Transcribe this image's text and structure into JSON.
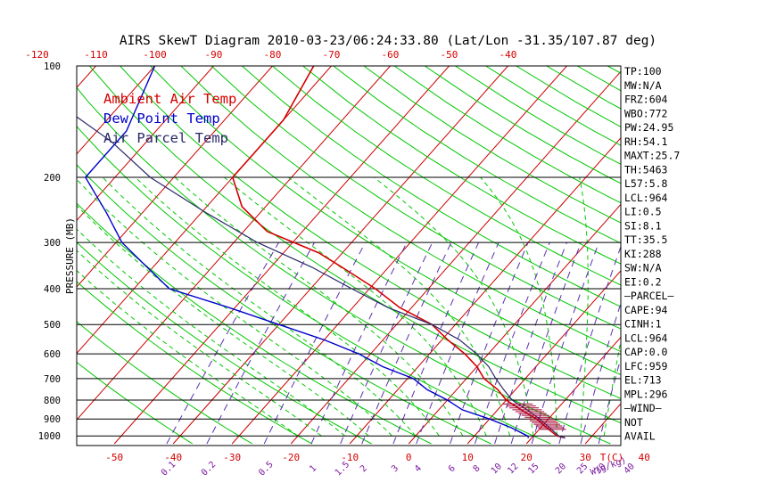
{
  "title": "AIRS SkewT Diagram 2010-03-23/06:24:33.80 (Lat/Lon -31.35/107.87 deg)",
  "legend": {
    "ambient": "Ambient Air Temp",
    "dewpoint": "Dew Point Temp",
    "parcel": "Air Parcel Temp"
  },
  "colors": {
    "ambient": "#d40000",
    "dewpoint": "#0000cc",
    "parcel": "#2a2a6a",
    "dry_adiabat": "#00c800",
    "moist_adiabat": "#00c800",
    "mixing_ratio": "#5a2fb0",
    "isotherm": "#cc0000",
    "isobar": "#000000",
    "text": "#000000",
    "mixing_label": "#7a1aa0",
    "wind_barb": "#a00030"
  },
  "stats": [
    "TP:100",
    "MW:N/A",
    "FRZ:604",
    "WBO:772",
    "PW:24.95",
    "RH:54.1",
    "MAXT:25.7",
    "TH:5463",
    "L57:5.8",
    "LCL:964",
    "LI:0.5",
    "SI:8.1",
    "TT:35.5",
    "KI:288",
    "SW:N/A",
    "EI:0.2",
    "—PARCEL—",
    "CAPE:94",
    "CINH:1",
    "LCL:964",
    "CAP:0.0",
    "LFC:959",
    "EL:713",
    "MPL:296",
    "—WIND—",
    "NOT",
    "AVAIL"
  ],
  "chart_data": {
    "type": "skewt",
    "ylabel": "PRESSURE (MB)",
    "xlabel": "T(C)",
    "mixing_unit": "W(g/kg)",
    "pressure_ticks": [
      100,
      200,
      300,
      400,
      500,
      600,
      700,
      800,
      900,
      1000
    ],
    "top_temp_ticks": [
      -120,
      -110,
      -100,
      -90,
      -80,
      -70,
      -60,
      -50,
      -40
    ],
    "bottom_temp_ticks": [
      -50,
      -40,
      -30,
      -20,
      -10,
      0,
      10,
      20,
      30,
      40
    ],
    "mixing_ratio_labels": [
      "0.1",
      "0.2",
      "0.5",
      "1",
      "1.5",
      "2",
      "3",
      "4",
      "6",
      "8",
      "10",
      "12",
      "15",
      "20",
      "25",
      "30",
      "40"
    ],
    "series": [
      {
        "name": "Ambient Air Temp",
        "points": [
          [
            100,
            -73
          ],
          [
            140,
            -70
          ],
          [
            180,
            -70
          ],
          [
            200,
            -70
          ],
          [
            240,
            -64
          ],
          [
            280,
            -56
          ],
          [
            320,
            -44
          ],
          [
            360,
            -36
          ],
          [
            400,
            -29
          ],
          [
            450,
            -22
          ],
          [
            500,
            -14
          ],
          [
            550,
            -9
          ],
          [
            600,
            -4
          ],
          [
            650,
            0
          ],
          [
            700,
            3
          ],
          [
            750,
            7
          ],
          [
            800,
            10
          ],
          [
            850,
            14
          ],
          [
            900,
            18
          ],
          [
            950,
            21
          ],
          [
            1000,
            24
          ],
          [
            1013,
            25.7
          ]
        ]
      },
      {
        "name": "Dew Point Temp",
        "points": [
          [
            100,
            -100
          ],
          [
            150,
            -95
          ],
          [
            200,
            -95
          ],
          [
            250,
            -86
          ],
          [
            300,
            -79
          ],
          [
            350,
            -71
          ],
          [
            400,
            -64
          ],
          [
            450,
            -51
          ],
          [
            500,
            -40
          ],
          [
            550,
            -30
          ],
          [
            600,
            -22
          ],
          [
            650,
            -16
          ],
          [
            700,
            -9
          ],
          [
            750,
            -5
          ],
          [
            800,
            0
          ],
          [
            850,
            4
          ],
          [
            900,
            10
          ],
          [
            950,
            15
          ],
          [
            1000,
            19
          ],
          [
            1013,
            19.5
          ]
        ]
      },
      {
        "name": "Air Parcel Temp",
        "points": [
          [
            100,
            -123
          ],
          [
            130,
            -109
          ],
          [
            160,
            -96
          ],
          [
            200,
            -84
          ],
          [
            250,
            -69
          ],
          [
            300,
            -56
          ],
          [
            350,
            -43
          ],
          [
            400,
            -33
          ],
          [
            450,
            -24
          ],
          [
            500,
            -14
          ],
          [
            550,
            -7
          ],
          [
            600,
            -2
          ],
          [
            650,
            2
          ],
          [
            700,
            5
          ],
          [
            750,
            8
          ],
          [
            800,
            11
          ],
          [
            850,
            15
          ],
          [
            900,
            18.5
          ],
          [
            950,
            21.5
          ],
          [
            1000,
            24.3
          ],
          [
            1013,
            25.7
          ]
        ]
      }
    ]
  }
}
